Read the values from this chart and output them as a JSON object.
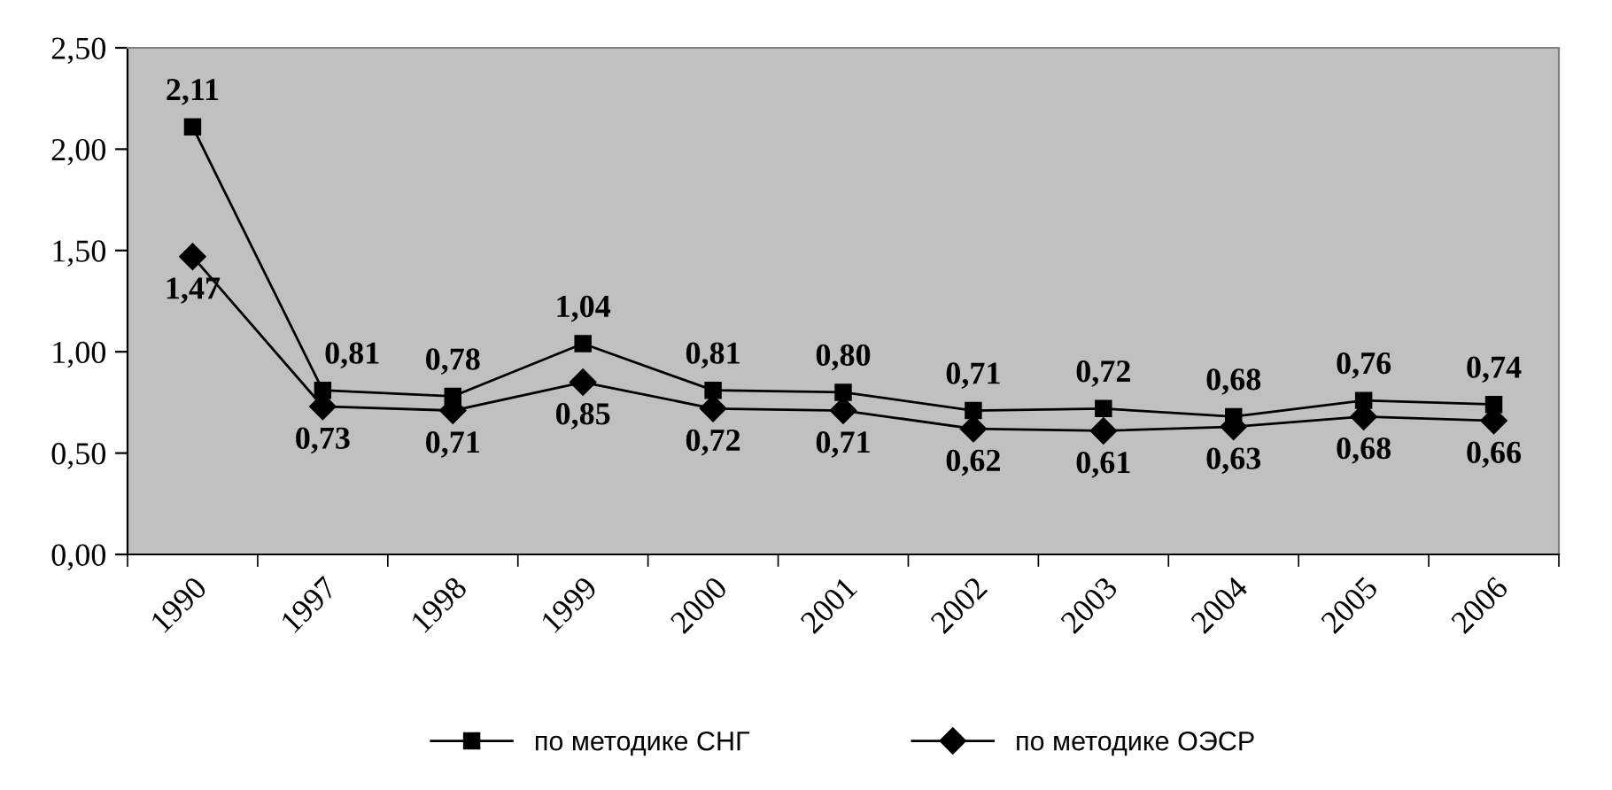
{
  "chart_data": {
    "type": "line",
    "categories": [
      "1990",
      "1997",
      "1998",
      "1999",
      "2000",
      "2001",
      "2002",
      "2003",
      "2004",
      "2005",
      "2006"
    ],
    "series": [
      {
        "name": "по методике СНГ",
        "color": "#000000",
        "marker": "square",
        "values": [
          2.11,
          0.81,
          0.78,
          1.04,
          0.81,
          0.8,
          0.71,
          0.72,
          0.68,
          0.76,
          0.74
        ],
        "value_labels": [
          "2,11",
          "0,81",
          "0,78",
          "1,04",
          "0,81",
          "0,80",
          "0,71",
          "0,72",
          "0,68",
          "0,76",
          "0,74"
        ]
      },
      {
        "name": "по методике ОЭСР",
        "color": "#000000",
        "marker": "diamond",
        "values": [
          1.47,
          0.73,
          0.71,
          0.85,
          0.72,
          0.71,
          0.62,
          0.61,
          0.63,
          0.68,
          0.66
        ],
        "value_labels": [
          "1,47",
          "0,73",
          "0,71",
          "0,85",
          "0,72",
          "0,71",
          "0,62",
          "0,61",
          "0,63",
          "0,68",
          "0,66"
        ]
      }
    ],
    "ylim": [
      0,
      2.5
    ],
    "yticks": [
      {
        "value": 0,
        "label": "0,00"
      },
      {
        "value": 0.5,
        "label": "0,50"
      },
      {
        "value": 1,
        "label": "1,00"
      },
      {
        "value": 1.5,
        "label": "1,50"
      },
      {
        "value": 2,
        "label": "2,00"
      },
      {
        "value": 2.5,
        "label": "2,50"
      }
    ],
    "grid": false,
    "legend": "bottom",
    "line_style": "solid"
  }
}
